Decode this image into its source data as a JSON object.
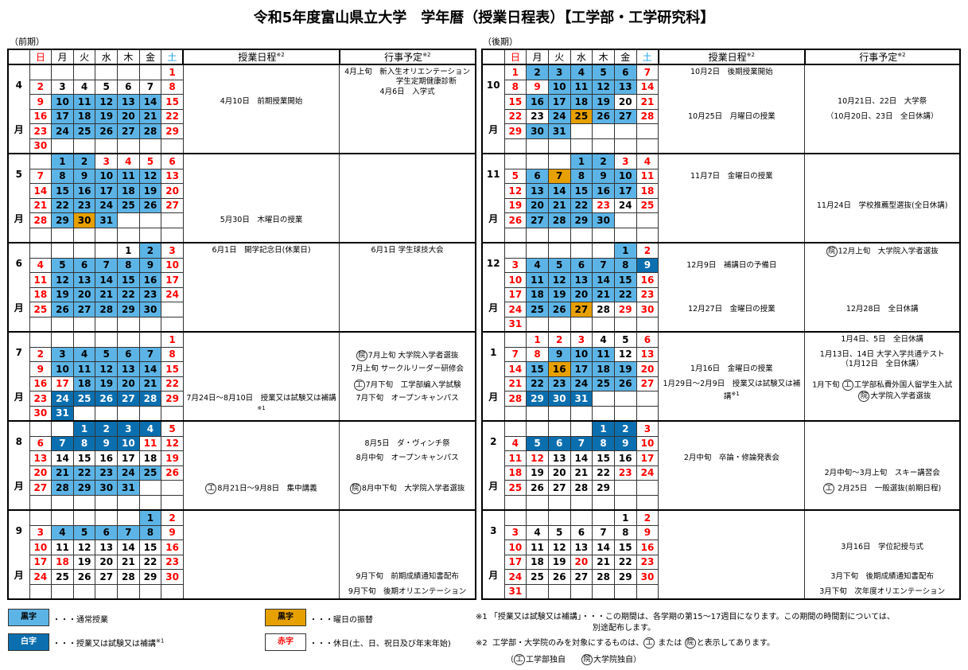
{
  "title": "令和5年度富山県立大学　学年暦（授業日程表）【工学部・工学研究科】",
  "colors": {
    "normal_class": "#5cb4e6",
    "exam_period": "#0b6faf",
    "swap_day": "#e6a000",
    "holiday_text": "#ff0000",
    "saturday_header": "#1ea0e6"
  },
  "style_codes": {
    "n": "black text",
    "r": "red text (holiday)",
    "b": "light blue (regular class)",
    "d": "dark blue (class/exam/makeup)",
    "o": "orange (weekday swap)"
  },
  "header": {
    "weekdays": [
      "日",
      "月",
      "火",
      "水",
      "木",
      "金",
      "土"
    ],
    "schedule": "授業日程",
    "events": "行事予定",
    "note_mark": "※2",
    "month_suffix": "月"
  },
  "halves": [
    {
      "label": "（前期）",
      "months": [
        {
          "month": "4",
          "weeks": [
            [
              "-",
              "-",
              "-",
              "-",
              "-",
              "-",
              "1r"
            ],
            [
              "2r",
              "3n",
              "4n",
              "5n",
              "6n",
              "7n",
              "8r"
            ],
            [
              "9r",
              "10b",
              "11b",
              "12b",
              "13b",
              "14b",
              "15r"
            ],
            [
              "16r",
              "17b",
              "18b",
              "19b",
              "20b",
              "21b",
              "22r"
            ],
            [
              "23r",
              "24b",
              "25b",
              "26b",
              "27b",
              "28b",
              "29r"
            ],
            [
              "30r",
              "-",
              "-",
              "-",
              "-",
              "-",
              "-"
            ]
          ],
          "schedule": [
            {
              "slot": 2,
              "text": "4月10日　前期授業開始"
            }
          ],
          "events": [
            {
              "slot": 0,
              "text": "4月上旬　新入生オリエンテーション\n　　　　　学生定期健康診断"
            },
            {
              "slot": 1,
              "text": "4月6日　入学式"
            }
          ]
        },
        {
          "month": "5",
          "weeks": [
            [
              "-",
              "1b",
              "2b",
              "3r",
              "4r",
              "5r",
              "6r"
            ],
            [
              "7r",
              "8b",
              "9b",
              "10b",
              "11b",
              "12b",
              "13r"
            ],
            [
              "14r",
              "15b",
              "16b",
              "17b",
              "18b",
              "19b",
              "20r"
            ],
            [
              "21r",
              "22b",
              "23b",
              "24b",
              "25b",
              "26b",
              "27r"
            ],
            [
              "28r",
              "29b",
              "30o",
              "31b",
              "-",
              "-",
              "-"
            ],
            [
              "-",
              "-",
              "-",
              "-",
              "-",
              "-",
              "-"
            ]
          ],
          "schedule": [
            {
              "slot": 4,
              "text": "5月30日　木曜日の授業"
            }
          ],
          "events": []
        },
        {
          "month": "6",
          "weeks": [
            [
              "-",
              "-",
              "-",
              "-",
              "1n",
              "2b",
              "3r"
            ],
            [
              "4r",
              "5b",
              "6b",
              "7b",
              "8b",
              "9b",
              "10r"
            ],
            [
              "11r",
              "12b",
              "13b",
              "14b",
              "15b",
              "16b",
              "17r"
            ],
            [
              "18r",
              "19b",
              "20b",
              "21b",
              "22b",
              "23b",
              "24r"
            ],
            [
              "25r",
              "26b",
              "27b",
              "28b",
              "29b",
              "30b",
              "-"
            ],
            [
              "-",
              "-",
              "-",
              "-",
              "-",
              "-",
              "-"
            ]
          ],
          "schedule": [
            {
              "slot": 0,
              "text": "6月1日　開学記念日(休業日)"
            }
          ],
          "events": [
            {
              "slot": 0,
              "text": "6月1日 学生球技大会"
            }
          ]
        },
        {
          "month": "7",
          "weeks": [
            [
              "-",
              "-",
              "-",
              "-",
              "-",
              "-",
              "1r"
            ],
            [
              "2r",
              "3b",
              "4b",
              "5b",
              "6b",
              "7b",
              "8r"
            ],
            [
              "9r",
              "10b",
              "11b",
              "12b",
              "13b",
              "14b",
              "15r"
            ],
            [
              "16r",
              "17r",
              "18b",
              "19b",
              "20b",
              "21b",
              "22r"
            ],
            [
              "23r",
              "24d",
              "25d",
              "26d",
              "27d",
              "28d",
              "29r"
            ],
            [
              "30r",
              "31d",
              "-",
              "-",
              "-",
              "-",
              "-"
            ]
          ],
          "schedule": [
            {
              "slot": 4,
              "text": "7月24日～8月10日　授業又は試験又は補講",
              "sup": "※1"
            }
          ],
          "events": [
            {
              "slot": 1,
              "mark": "院",
              "text": "7月上旬 大学院入学者選抜"
            },
            {
              "slot": 2,
              "text": "7月上旬 サークルリーダー研修会"
            },
            {
              "slot": 3,
              "mark": "工",
              "text": "7月下旬　工学部編入学試験"
            },
            {
              "slot": 4,
              "text": "7月下旬　オープンキャンパス"
            }
          ]
        },
        {
          "month": "8",
          "weeks": [
            [
              "-",
              "-",
              "1d",
              "2d",
              "3d",
              "4d",
              "5r"
            ],
            [
              "6r",
              "7d",
              "8d",
              "9d",
              "10d",
              "11r",
              "12r"
            ],
            [
              "13r",
              "14n",
              "15n",
              "16n",
              "17n",
              "18n",
              "19r"
            ],
            [
              "20r",
              "21b",
              "22b",
              "23b",
              "24b",
              "25b",
              "26r"
            ],
            [
              "27r",
              "28b",
              "29b",
              "30b",
              "31b",
              "-",
              "-"
            ],
            [
              "-",
              "-",
              "-",
              "-",
              "-",
              "-",
              "-"
            ]
          ],
          "schedule": [
            {
              "slot": 4,
              "mark": "工",
              "text": "8月21日～9月8日　集中講義"
            }
          ],
          "events": [
            {
              "slot": 1,
              "text": "8月5日　ダ・ヴィンチ祭"
            },
            {
              "slot": 2,
              "text": "8月中旬　オープンキャンパス"
            },
            {
              "slot": 4,
              "mark": "院",
              "text": "8月中下旬　大学院入学者選抜"
            }
          ]
        },
        {
          "month": "9",
          "weeks": [
            [
              "-",
              "-",
              "-",
              "-",
              "-",
              "1b",
              "2r"
            ],
            [
              "3r",
              "4b",
              "5b",
              "6b",
              "7b",
              "8b",
              "9r"
            ],
            [
              "10r",
              "11n",
              "12n",
              "13n",
              "14n",
              "15n",
              "16r"
            ],
            [
              "17r",
              "18r",
              "19n",
              "20n",
              "21n",
              "22n",
              "23r"
            ],
            [
              "24r",
              "25n",
              "26n",
              "27n",
              "28n",
              "29n",
              "30r"
            ],
            [
              "-",
              "-",
              "-",
              "-",
              "-",
              "-",
              "-"
            ]
          ],
          "schedule": [],
          "events": [
            {
              "slot": 4,
              "text": "9月下旬　前期成績通知書配布"
            },
            {
              "slot": 5,
              "text": "9月下旬　後期オリエンテーション"
            }
          ]
        }
      ]
    },
    {
      "label": "（後期）",
      "months": [
        {
          "month": "10",
          "weeks": [
            [
              "1r",
              "2b",
              "3b",
              "4b",
              "5b",
              "6b",
              "7r"
            ],
            [
              "8r",
              "9r",
              "10b",
              "11b",
              "12b",
              "13b",
              "14r"
            ],
            [
              "15r",
              "16b",
              "17b",
              "18b",
              "19b",
              "20n",
              "21r"
            ],
            [
              "22r",
              "23n",
              "24b",
              "25o",
              "26b",
              "27b",
              "28r"
            ],
            [
              "29r",
              "30b",
              "31b",
              "-",
              "-",
              "-",
              "-"
            ],
            [
              "-",
              "-",
              "-",
              "-",
              "-",
              "-",
              "-"
            ]
          ],
          "schedule": [
            {
              "slot": 0,
              "text": "10月2日　後期授業開始"
            },
            {
              "slot": 3,
              "text": "10月25日　月曜日の授業"
            }
          ],
          "events": [
            {
              "slot": 2,
              "text": "10月21日、22日　大学祭"
            },
            {
              "slot": 3,
              "text": "（10月20日、23日　全日休講）"
            }
          ]
        },
        {
          "month": "11",
          "weeks": [
            [
              "-",
              "-",
              "-",
              "1b",
              "2b",
              "3r",
              "4r"
            ],
            [
              "5r",
              "6b",
              "7o",
              "8b",
              "9b",
              "10b",
              "11r"
            ],
            [
              "12r",
              "13b",
              "14b",
              "15b",
              "16b",
              "17b",
              "18r"
            ],
            [
              "19r",
              "20b",
              "21b",
              "22b",
              "23r",
              "24n",
              "25r"
            ],
            [
              "26r",
              "27b",
              "28b",
              "29b",
              "30b",
              "-",
              "-"
            ],
            [
              "-",
              "-",
              "-",
              "-",
              "-",
              "-",
              "-"
            ]
          ],
          "schedule": [
            {
              "slot": 1,
              "text": "11月7日　金曜日の授業"
            }
          ],
          "events": [
            {
              "slot": 3,
              "text": "11月24日　学校推薦型選抜(全日休講)"
            }
          ]
        },
        {
          "month": "12",
          "weeks": [
            [
              "-",
              "-",
              "-",
              "-",
              "-",
              "1b",
              "2r"
            ],
            [
              "3r",
              "4b",
              "5b",
              "6b",
              "7b",
              "8b",
              "9d"
            ],
            [
              "10r",
              "11b",
              "12b",
              "13b",
              "14b",
              "15b",
              "16r"
            ],
            [
              "17r",
              "18b",
              "19b",
              "20b",
              "21b",
              "22b",
              "23r"
            ],
            [
              "24r",
              "25b",
              "26b",
              "27o",
              "28n",
              "29r",
              "30r"
            ],
            [
              "31r",
              "-",
              "-",
              "-",
              "-",
              "-",
              "-"
            ]
          ],
          "schedule": [
            {
              "slot": 1,
              "text": "12月9日　補講日の予備日"
            },
            {
              "slot": 4,
              "text": "12月27日　金曜日の授業"
            }
          ],
          "events": [
            {
              "slot": 0,
              "mark": "院",
              "text": "12月上旬　大学院入学者選抜"
            },
            {
              "slot": 4,
              "text": "12月28日　全日休講"
            }
          ]
        },
        {
          "month": "1",
          "weeks": [
            [
              "-",
              "1r",
              "2r",
              "3r",
              "4n",
              "5n",
              "6r"
            ],
            [
              "7r",
              "8r",
              "9b",
              "10b",
              "11b",
              "12n",
              "13r"
            ],
            [
              "14r",
              "15b",
              "16o",
              "17b",
              "18b",
              "19b",
              "20r"
            ],
            [
              "21r",
              "22b",
              "23b",
              "24b",
              "25b",
              "26b",
              "27r"
            ],
            [
              "28r",
              "29d",
              "30d",
              "31d",
              "-",
              "-",
              "-"
            ],
            [
              "-",
              "-",
              "-",
              "-",
              "-",
              "-",
              "-"
            ]
          ],
          "schedule": [
            {
              "slot": 2,
              "text": "1月16日　金曜日の授業"
            },
            {
              "slot": 3,
              "text": "1月29日～2月9日　授業又は試験又は補講",
              "sup": "※1"
            }
          ],
          "events": [
            {
              "slot": 0,
              "text": "1月4日、5日　全日休講"
            },
            {
              "slot": 1,
              "text": "1月13日、14日 大学入学共通テスト\n（1月12日　全日休講）"
            },
            {
              "slot": 3,
              "text": "1月下旬 ",
              "mark2": "工",
              "text2": "工学部私費外国人留学生入試",
              "mark3": "院",
              "text3": "大学院入学者選抜"
            }
          ]
        },
        {
          "month": "2",
          "weeks": [
            [
              "-",
              "-",
              "-",
              "-",
              "1d",
              "2d",
              "3r"
            ],
            [
              "4r",
              "5d",
              "6d",
              "7d",
              "8d",
              "9d",
              "10r"
            ],
            [
              "11r",
              "12r",
              "13n",
              "14n",
              "15n",
              "16n",
              "17r"
            ],
            [
              "18r",
              "19n",
              "20n",
              "21n",
              "22n",
              "23r",
              "24r"
            ],
            [
              "25r",
              "26n",
              "27n",
              "28n",
              "29n",
              "-",
              "-"
            ],
            [
              "-",
              "-",
              "-",
              "-",
              "-",
              "-",
              "-"
            ]
          ],
          "schedule": [
            {
              "slot": 2,
              "text": "2月中旬　卒論・修論発表会"
            }
          ],
          "events": [
            {
              "slot": 3,
              "text": "2月中旬～3月上旬　スキー講習会"
            },
            {
              "slot": 4,
              "mark": "工",
              "text": " 2月25日　一般選抜(前期日程)"
            }
          ]
        },
        {
          "month": "3",
          "weeks": [
            [
              "-",
              "-",
              "-",
              "-",
              "-",
              "1n",
              "2r"
            ],
            [
              "3r",
              "4n",
              "5n",
              "6n",
              "7n",
              "8n",
              "9r"
            ],
            [
              "10r",
              "11n",
              "12n",
              "13n",
              "14n",
              "15n",
              "16r"
            ],
            [
              "17r",
              "18n",
              "19n",
              "20r",
              "21n",
              "22n",
              "23r"
            ],
            [
              "24r",
              "25n",
              "26n",
              "27n",
              "28n",
              "29n",
              "30r"
            ],
            [
              "31r",
              "-",
              "-",
              "-",
              "-",
              "-",
              "-"
            ]
          ],
          "schedule": [],
          "events": [
            {
              "slot": 2,
              "text": "3月16日　学位記授与式"
            },
            {
              "slot": 4,
              "text": "3月下旬　後期成績通知書配布"
            },
            {
              "slot": 5,
              "text": "3月下旬　次年度オリエンテーション"
            }
          ]
        }
      ]
    }
  ],
  "legend": {
    "regular": {
      "box": "黒字",
      "text": "・・・通常授業"
    },
    "exam": {
      "box": "白字",
      "text": "・・・授業又は試験又は補講",
      "sup": "※1"
    },
    "swap": {
      "box": "黒字",
      "text": "・・・曜日の振替"
    },
    "holiday": {
      "box": "赤字",
      "text": "・・・休日(土、日、祝日及び年末年始)"
    }
  },
  "notes": {
    "n1_line1": "※1 「授業又は試験又は補講」・・・この期間は、各学期の第15～17週目になります。この期間の時間割については、",
    "n1_line2": "別途配布します。",
    "n2_pre": "※2  工学部・大学院のみを対象にするものは、",
    "n2_mark1": "工",
    "n2_mid": " または ",
    "n2_mark2": "院",
    "n2_post": "と表示してあります。",
    "n3_open": "（",
    "n3_mark1": "工",
    "n3_t1": "工学部独自　　",
    "n3_mark2": "院",
    "n3_t2": "大学院独自）"
  }
}
